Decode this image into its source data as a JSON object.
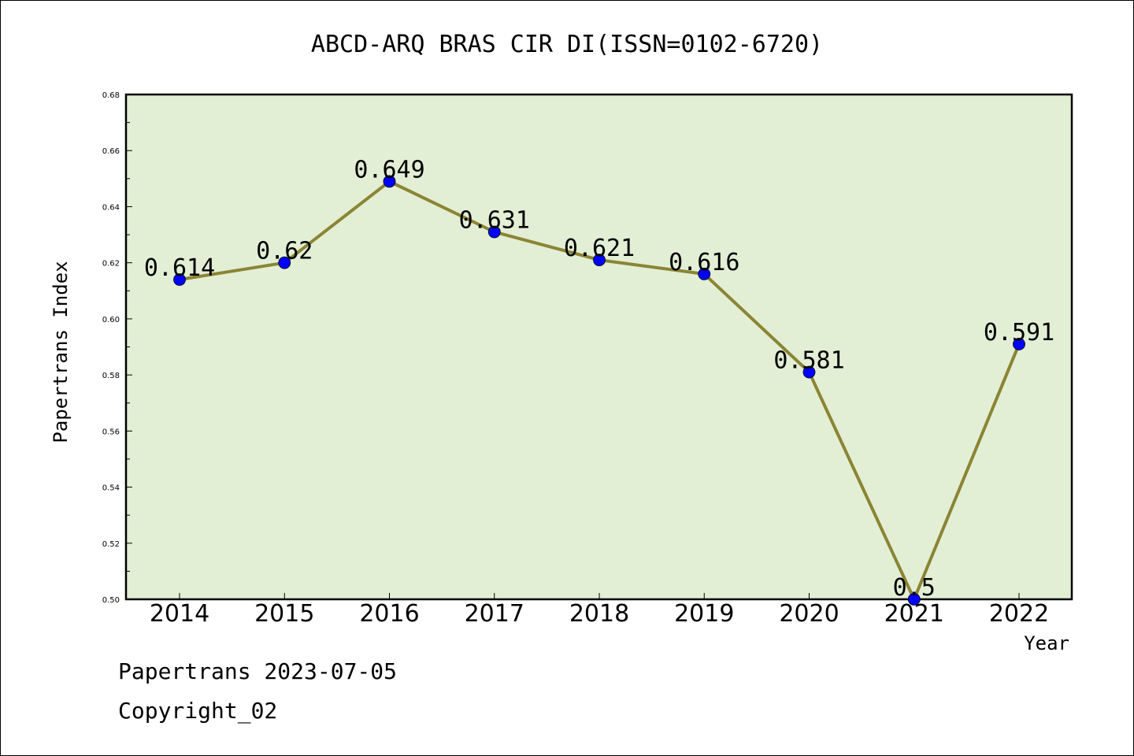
{
  "chart_data": {
    "type": "line",
    "title": "ABCD-ARQ BRAS CIR DI(ISSN=0102-6720)",
    "xlabel": "Year",
    "ylabel": "Papertrans Index",
    "categories": [
      "2014",
      "2015",
      "2016",
      "2017",
      "2018",
      "2019",
      "2020",
      "2021",
      "2022"
    ],
    "values": [
      0.614,
      0.62,
      0.649,
      0.631,
      0.621,
      0.616,
      0.581,
      0.5,
      0.591
    ],
    "data_labels": [
      "0.614",
      "0.62",
      "0.649",
      "0.631",
      "0.621",
      "0.616",
      "0.581",
      "0.5",
      "0.591"
    ],
    "ylim": [
      0.5,
      0.68
    ],
    "yticks": [
      "0.50",
      "0.52",
      "0.54",
      "0.56",
      "0.58",
      "0.60",
      "0.62",
      "0.64",
      "0.66",
      "0.68"
    ],
    "grid": false,
    "colors": {
      "plot_background": "#e2efd5",
      "line": "#8b8434",
      "marker": "#0000ff"
    }
  },
  "footer": {
    "line1": "Papertrans 2023-07-05",
    "line2": "Copyright_02"
  }
}
